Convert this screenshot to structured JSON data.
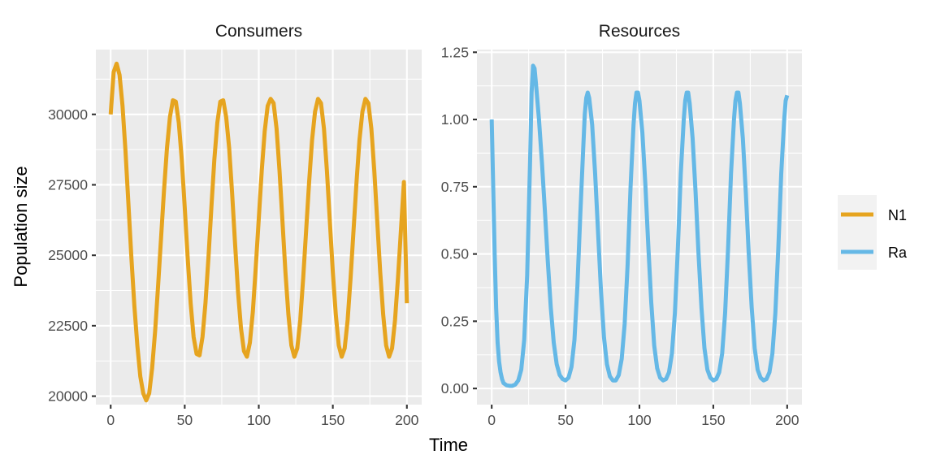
{
  "chart_data": {
    "type": "line",
    "xlabel": "Time",
    "ylabel": "Population size",
    "legend_position": "right",
    "panels": [
      {
        "title": "Consumers",
        "xlim": [
          -10,
          210
        ],
        "ylim": [
          19700,
          32300
        ],
        "x_ticks": [
          0,
          50,
          100,
          150,
          200
        ],
        "y_ticks": [
          20000,
          22500,
          25000,
          27500,
          30000
        ],
        "y_tick_labels": [
          "20000",
          "22500",
          "25000",
          "27500",
          "30000"
        ],
        "series": [
          {
            "name": "N1",
            "color": "#E6A41F",
            "points": [
              [
                0,
                30000
              ],
              [
                2,
                31500
              ],
              [
                4,
                31800
              ],
              [
                6,
                31400
              ],
              [
                8,
                30300
              ],
              [
                10,
                28700
              ],
              [
                12,
                26800
              ],
              [
                14,
                24900
              ],
              [
                16,
                23200
              ],
              [
                18,
                21800
              ],
              [
                20,
                20700
              ],
              [
                22,
                20100
              ],
              [
                24,
                19850
              ],
              [
                26,
                20100
              ],
              [
                28,
                21000
              ],
              [
                30,
                22300
              ],
              [
                32,
                23900
              ],
              [
                34,
                25600
              ],
              [
                36,
                27300
              ],
              [
                38,
                28800
              ],
              [
                40,
                29900
              ],
              [
                42,
                30500
              ],
              [
                44,
                30450
              ],
              [
                46,
                29700
              ],
              [
                48,
                28400
              ],
              [
                50,
                26700
              ],
              [
                52,
                24900
              ],
              [
                54,
                23300
              ],
              [
                56,
                22100
              ],
              [
                58,
                21500
              ],
              [
                60,
                21450
              ],
              [
                62,
                22100
              ],
              [
                64,
                23300
              ],
              [
                66,
                24900
              ],
              [
                68,
                26700
              ],
              [
                70,
                28400
              ],
              [
                72,
                29700
              ],
              [
                74,
                30450
              ],
              [
                76,
                30500
              ],
              [
                78,
                29900
              ],
              [
                80,
                28800
              ],
              [
                82,
                27200
              ],
              [
                84,
                25400
              ],
              [
                86,
                23700
              ],
              [
                88,
                22400
              ],
              [
                90,
                21600
              ],
              [
                92,
                21400
              ],
              [
                94,
                21900
              ],
              [
                96,
                23000
              ],
              [
                98,
                24600
              ],
              [
                100,
                26300
              ],
              [
                102,
                28000
              ],
              [
                104,
                29400
              ],
              [
                106,
                30300
              ],
              [
                108,
                30550
              ],
              [
                110,
                30400
              ],
              [
                112,
                29500
              ],
              [
                114,
                28000
              ],
              [
                116,
                26200
              ],
              [
                118,
                24400
              ],
              [
                120,
                22900
              ],
              [
                122,
                21800
              ],
              [
                124,
                21400
              ],
              [
                126,
                21700
              ],
              [
                128,
                22700
              ],
              [
                130,
                24200
              ],
              [
                132,
                25900
              ],
              [
                134,
                27600
              ],
              [
                136,
                29100
              ],
              [
                138,
                30100
              ],
              [
                140,
                30550
              ],
              [
                142,
                30400
              ],
              [
                144,
                29500
              ],
              [
                146,
                28000
              ],
              [
                148,
                26200
              ],
              [
                150,
                24400
              ],
              [
                152,
                22900
              ],
              [
                154,
                21800
              ],
              [
                156,
                21400
              ],
              [
                158,
                21700
              ],
              [
                160,
                22700
              ],
              [
                162,
                24200
              ],
              [
                164,
                25900
              ],
              [
                166,
                27600
              ],
              [
                168,
                29100
              ],
              [
                170,
                30100
              ],
              [
                172,
                30550
              ],
              [
                174,
                30400
              ],
              [
                176,
                29500
              ],
              [
                178,
                28000
              ],
              [
                180,
                26200
              ],
              [
                182,
                24400
              ],
              [
                184,
                22900
              ],
              [
                186,
                21800
              ],
              [
                188,
                21400
              ],
              [
                190,
                21700
              ],
              [
                192,
                22700
              ],
              [
                194,
                24200
              ],
              [
                196,
                25900
              ],
              [
                198,
                27600
              ],
              [
                200,
                23300
              ]
            ]
          }
        ]
      },
      {
        "title": "Resources",
        "xlim": [
          -10,
          210
        ],
        "ylim": [
          -0.06,
          1.26
        ],
        "x_ticks": [
          0,
          50,
          100,
          150,
          200
        ],
        "y_ticks": [
          0,
          0.25,
          0.5,
          0.75,
          1.0,
          1.25
        ],
        "y_tick_labels": [
          "0.00",
          "0.25",
          "0.50",
          "0.75",
          "1.00",
          "1.25"
        ],
        "series": [
          {
            "name": "Ra",
            "color": "#65B8E6",
            "points": [
              [
                0,
                1.0
              ],
              [
                1,
                0.75
              ],
              [
                2,
                0.5
              ],
              [
                3,
                0.3
              ],
              [
                4,
                0.17
              ],
              [
                5,
                0.1
              ],
              [
                6,
                0.06
              ],
              [
                7,
                0.035
              ],
              [
                8,
                0.02
              ],
              [
                10,
                0.012
              ],
              [
                12,
                0.01
              ],
              [
                14,
                0.01
              ],
              [
                16,
                0.015
              ],
              [
                18,
                0.03
              ],
              [
                20,
                0.07
              ],
              [
                22,
                0.18
              ],
              [
                24,
                0.42
              ],
              [
                26,
                0.85
              ],
              [
                27,
                1.1
              ],
              [
                28,
                1.2
              ],
              [
                29,
                1.19
              ],
              [
                30,
                1.13
              ],
              [
                32,
                1.0
              ],
              [
                34,
                0.84
              ],
              [
                36,
                0.66
              ],
              [
                38,
                0.47
              ],
              [
                40,
                0.3
              ],
              [
                42,
                0.17
              ],
              [
                44,
                0.09
              ],
              [
                46,
                0.05
              ],
              [
                48,
                0.035
              ],
              [
                50,
                0.03
              ],
              [
                52,
                0.04
              ],
              [
                54,
                0.08
              ],
              [
                56,
                0.18
              ],
              [
                58,
                0.38
              ],
              [
                60,
                0.65
              ],
              [
                62,
                0.9
              ],
              [
                63,
                1.02
              ],
              [
                64,
                1.08
              ],
              [
                65,
                1.1
              ],
              [
                66,
                1.08
              ],
              [
                68,
                0.98
              ],
              [
                70,
                0.8
              ],
              [
                72,
                0.58
              ],
              [
                74,
                0.36
              ],
              [
                76,
                0.19
              ],
              [
                78,
                0.09
              ],
              [
                80,
                0.045
              ],
              [
                82,
                0.03
              ],
              [
                84,
                0.03
              ],
              [
                86,
                0.05
              ],
              [
                88,
                0.11
              ],
              [
                90,
                0.24
              ],
              [
                92,
                0.46
              ],
              [
                94,
                0.75
              ],
              [
                96,
                0.98
              ],
              [
                97,
                1.06
              ],
              [
                98,
                1.1
              ],
              [
                99,
                1.1
              ],
              [
                100,
                1.07
              ],
              [
                102,
                0.95
              ],
              [
                104,
                0.76
              ],
              [
                106,
                0.53
              ],
              [
                108,
                0.32
              ],
              [
                110,
                0.16
              ],
              [
                112,
                0.075
              ],
              [
                114,
                0.04
              ],
              [
                116,
                0.03
              ],
              [
                118,
                0.035
              ],
              [
                120,
                0.06
              ],
              [
                122,
                0.13
              ],
              [
                124,
                0.28
              ],
              [
                126,
                0.52
              ],
              [
                128,
                0.8
              ],
              [
                130,
                1.0
              ],
              [
                131,
                1.07
              ],
              [
                132,
                1.1
              ],
              [
                133,
                1.1
              ],
              [
                134,
                1.06
              ],
              [
                136,
                0.93
              ],
              [
                138,
                0.73
              ],
              [
                140,
                0.5
              ],
              [
                142,
                0.3
              ],
              [
                144,
                0.15
              ],
              [
                146,
                0.07
              ],
              [
                148,
                0.04
              ],
              [
                150,
                0.03
              ],
              [
                152,
                0.035
              ],
              [
                154,
                0.06
              ],
              [
                156,
                0.13
              ],
              [
                158,
                0.28
              ],
              [
                160,
                0.52
              ],
              [
                162,
                0.8
              ],
              [
                164,
                1.0
              ],
              [
                165,
                1.07
              ],
              [
                166,
                1.1
              ],
              [
                167,
                1.1
              ],
              [
                168,
                1.06
              ],
              [
                170,
                0.93
              ],
              [
                172,
                0.73
              ],
              [
                174,
                0.5
              ],
              [
                176,
                0.3
              ],
              [
                178,
                0.15
              ],
              [
                180,
                0.07
              ],
              [
                182,
                0.04
              ],
              [
                184,
                0.03
              ],
              [
                186,
                0.035
              ],
              [
                188,
                0.06
              ],
              [
                190,
                0.13
              ],
              [
                192,
                0.28
              ],
              [
                194,
                0.52
              ],
              [
                196,
                0.8
              ],
              [
                198,
                1.0
              ],
              [
                199,
                1.07
              ],
              [
                200,
                1.09
              ]
            ]
          }
        ]
      }
    ]
  }
}
